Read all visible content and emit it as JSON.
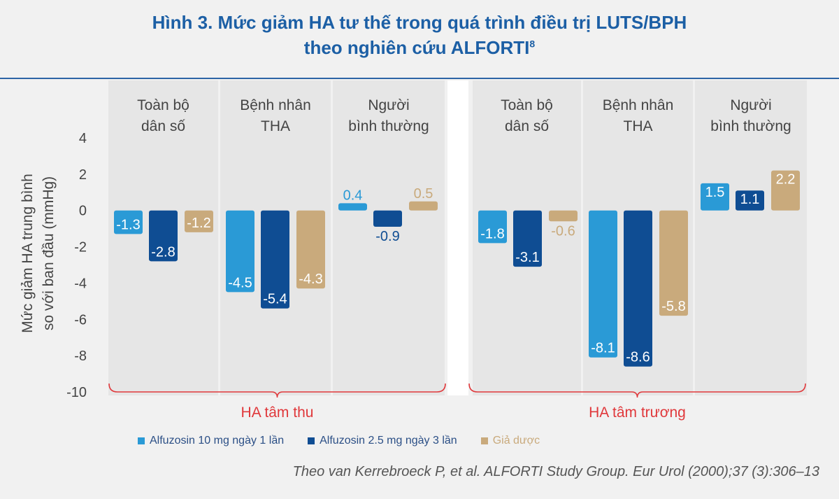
{
  "title": {
    "line1": "Hình 3. Mức giảm HA tư thế trong quá trình điều trị LUTS/BPH",
    "line2": "theo nghiên cứu ALFORTI",
    "superscript": "8"
  },
  "chart_data": {
    "type": "bar",
    "ylabel_line1": "Mức giảm HA trung bình",
    "ylabel_line2": "so với ban đầu (mmHg)",
    "ylim": [
      -10,
      4
    ],
    "yticks": [
      4,
      2,
      0,
      -2,
      -4,
      -6,
      -8,
      -10
    ],
    "panels": [
      {
        "label": "HA tâm thu",
        "groups": [
          {
            "label": [
              "Toàn bộ",
              "dân số"
            ],
            "values": [
              -1.3,
              -2.8,
              -1.2
            ]
          },
          {
            "label": [
              "Bệnh nhân",
              "THA"
            ],
            "values": [
              -4.5,
              -5.4,
              -4.3
            ]
          },
          {
            "label": [
              "Người",
              "bình thường"
            ],
            "values": [
              0.4,
              -0.9,
              0.5
            ]
          }
        ]
      },
      {
        "label": "HA tâm trương",
        "groups": [
          {
            "label": [
              "Toàn bộ",
              "dân số"
            ],
            "values": [
              -1.8,
              -3.1,
              -0.6
            ]
          },
          {
            "label": [
              "Bệnh nhân",
              "THA"
            ],
            "values": [
              -8.1,
              -8.6,
              -5.8
            ]
          },
          {
            "label": [
              "Người",
              "bình thường"
            ],
            "values": [
              1.5,
              1.1,
              2.2
            ]
          }
        ]
      }
    ],
    "series": [
      {
        "name": "Alfuzosin 10 mg ngày 1 lần",
        "color": "#2a9ad6"
      },
      {
        "name": "Alfuzosin 2.5 mg ngày 3 lần",
        "color": "#0f4d93"
      },
      {
        "name": "Giả dược",
        "color": "#c9aa7c"
      }
    ],
    "bracket_color": "#e0383b",
    "grid": false,
    "legend_position": "bottom"
  },
  "source": "Theo van Kerrebroeck P, et al. ALFORTI Study Group. Eur Urol (2000);37 (3):306–13"
}
